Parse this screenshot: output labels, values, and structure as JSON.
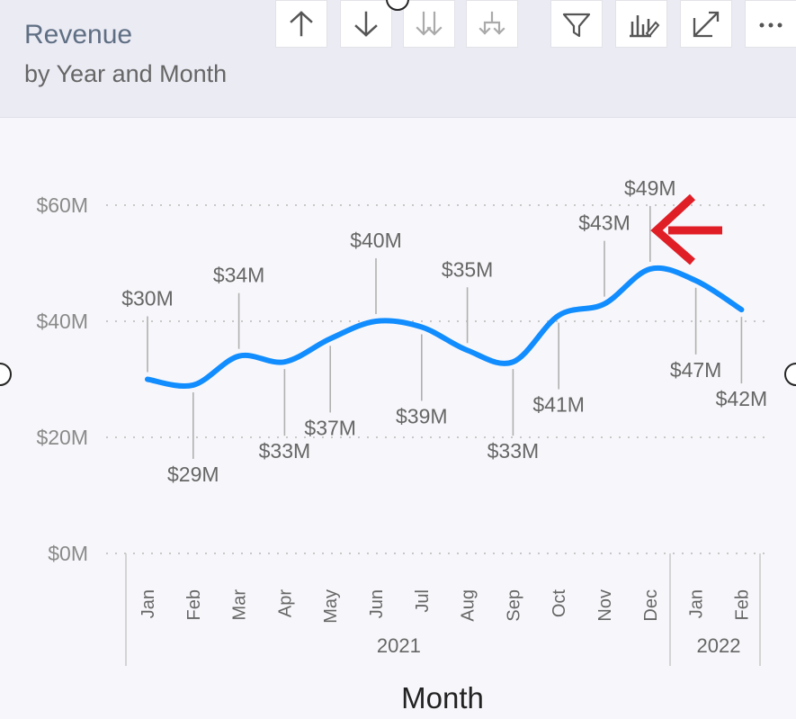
{
  "header": {
    "title": "Revenue",
    "subtitle": "by Year and Month"
  },
  "toolbar": [
    {
      "name": "drill-up-icon",
      "label": "Drill up"
    },
    {
      "name": "drill-down-icon",
      "label": "Drill down"
    },
    {
      "name": "next-level-icon",
      "label": "Go to the next level in the hierarchy"
    },
    {
      "name": "expand-hierarchy-icon",
      "label": "Expand all down one level in the hierarchy"
    },
    {
      "name": "filter-icon",
      "label": "Filter"
    },
    {
      "name": "visual-edit-icon",
      "label": "Format visual"
    },
    {
      "name": "focus-mode-icon",
      "label": "Focus mode"
    },
    {
      "name": "more-options-icon",
      "label": "More options"
    }
  ],
  "chart_data": {
    "type": "line",
    "title": "Revenue",
    "subtitle": "by Year and Month",
    "xlabel": "Month",
    "ylabel": "",
    "ylim": [
      0,
      60
    ],
    "y_ticks": [
      {
        "label": "$60M",
        "value": 60
      },
      {
        "label": "$40M",
        "value": 40
      },
      {
        "label": "$20M",
        "value": 20
      },
      {
        "label": "$0M",
        "value": 0
      }
    ],
    "grid": true,
    "line_color": "#118dff",
    "arrow_color": "#e01e26",
    "points": [
      {
        "month": "Jan",
        "year": "2021",
        "value": 30,
        "label": "$30M",
        "label_position": "above"
      },
      {
        "month": "Feb",
        "year": "2021",
        "value": 29,
        "label": "$29M",
        "label_position": "below"
      },
      {
        "month": "Mar",
        "year": "2021",
        "value": 34,
        "label": "$34M",
        "label_position": "above"
      },
      {
        "month": "Apr",
        "year": "2021",
        "value": 33,
        "label": "$33M",
        "label_position": "below"
      },
      {
        "month": "May",
        "year": "2021",
        "value": 37,
        "label": "$37M",
        "label_position": "below"
      },
      {
        "month": "Jun",
        "year": "2021",
        "value": 40,
        "label": "$40M",
        "label_position": "above"
      },
      {
        "month": "Jul",
        "year": "2021",
        "value": 39,
        "label": "$39M",
        "label_position": "below"
      },
      {
        "month": "Aug",
        "year": "2021",
        "value": 35,
        "label": "$35M",
        "label_position": "above"
      },
      {
        "month": "Sep",
        "year": "2021",
        "value": 33,
        "label": "$33M",
        "label_position": "below"
      },
      {
        "month": "Oct",
        "year": "2021",
        "value": 41,
        "label": "$41M",
        "label_position": "below"
      },
      {
        "month": "Nov",
        "year": "2021",
        "value": 43,
        "label": "$43M",
        "label_position": "above"
      },
      {
        "month": "Dec",
        "year": "2021",
        "value": 49,
        "label": "$49M",
        "label_position": "above"
      },
      {
        "month": "Jan",
        "year": "2022",
        "value": 47,
        "label": "$47M",
        "label_position": "below"
      },
      {
        "month": "Feb",
        "year": "2022",
        "value": 42,
        "label": "$42M",
        "label_position": "below"
      }
    ],
    "year_groups": [
      {
        "label": "2021",
        "start_index": 0,
        "end_index": 11
      },
      {
        "label": "2022",
        "start_index": 12,
        "end_index": 13
      }
    ]
  }
}
